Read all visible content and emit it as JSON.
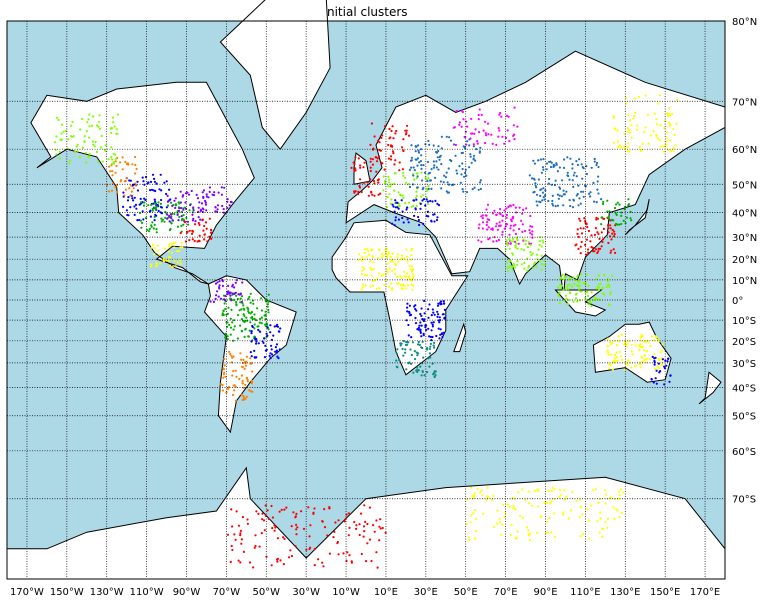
{
  "title": "Initial clusters",
  "colors": {
    "ocean": "#add8e6",
    "land": "#ffffff",
    "coast": "#000000",
    "grid": "#000000",
    "clusters": [
      "#ff0000",
      "#ff7f00",
      "#ffff00",
      "#7fff00",
      "#00b000",
      "#0d8f7f",
      "#1f6fbf",
      "#0000ff",
      "#7f00ff",
      "#ff00ff",
      "#ff0066"
    ]
  },
  "map": {
    "projection": "mercator",
    "lon_range": [
      -180,
      180
    ],
    "lat_range": [
      -80,
      80
    ],
    "parallels": [
      80,
      70,
      60,
      50,
      40,
      30,
      20,
      10,
      0,
      -10,
      -20,
      -30,
      -40,
      -50,
      -60,
      -70
    ],
    "meridians": [
      -170,
      -150,
      -130,
      -110,
      -90,
      -70,
      -50,
      -30,
      -10,
      10,
      30,
      50,
      70,
      90,
      110,
      130,
      150,
      170
    ],
    "lat_labels": [
      "80°N",
      "70°N",
      "60°N",
      "50°N",
      "40°N",
      "30°N",
      "20°N",
      "10°N",
      "0°",
      "10°S",
      "20°S",
      "30°S",
      "40°S",
      "50°S",
      "60°S",
      "70°S"
    ],
    "lon_labels": [
      "170°W",
      "150°W",
      "130°W",
      "110°W",
      "90°W",
      "70°W",
      "50°W",
      "30°W",
      "10°W",
      "10°E",
      "30°E",
      "50°E",
      "70°E",
      "90°E",
      "110°E",
      "130°E",
      "150°E",
      "170°E"
    ]
  },
  "clusters": [
    {
      "lon": -110,
      "lat": 45,
      "color": 7,
      "w": 12,
      "h": 8
    },
    {
      "lon": -100,
      "lat": 38,
      "color": 4,
      "w": 14,
      "h": 6
    },
    {
      "lon": -90,
      "lat": 42,
      "color": 8,
      "w": 10,
      "h": 6
    },
    {
      "lon": -85,
      "lat": 33,
      "color": 0,
      "w": 8,
      "h": 5
    },
    {
      "lon": -122,
      "lat": 52,
      "color": 1,
      "w": 8,
      "h": 6
    },
    {
      "lon": -140,
      "lat": 62,
      "color": 3,
      "w": 16,
      "h": 6
    },
    {
      "lon": -75,
      "lat": 45,
      "color": 8,
      "w": 8,
      "h": 5
    },
    {
      "lon": -100,
      "lat": 22,
      "color": 2,
      "w": 8,
      "h": 6
    },
    {
      "lon": -60,
      "lat": -8,
      "color": 4,
      "w": 12,
      "h": 12
    },
    {
      "lon": -50,
      "lat": -20,
      "color": 7,
      "w": 8,
      "h": 8
    },
    {
      "lon": -65,
      "lat": -35,
      "color": 1,
      "w": 8,
      "h": 10
    },
    {
      "lon": -70,
      "lat": 5,
      "color": 8,
      "w": 8,
      "h": 6
    },
    {
      "lon": 0,
      "lat": 52,
      "color": 0,
      "w": 8,
      "h": 6
    },
    {
      "lon": 20,
      "lat": 48,
      "color": 3,
      "w": 12,
      "h": 6
    },
    {
      "lon": 12,
      "lat": 60,
      "color": 0,
      "w": 10,
      "h": 6
    },
    {
      "lon": 40,
      "lat": 55,
      "color": 6,
      "w": 18,
      "h": 8
    },
    {
      "lon": 25,
      "lat": 40,
      "color": 7,
      "w": 12,
      "h": 5
    },
    {
      "lon": 10,
      "lat": 15,
      "color": 2,
      "w": 14,
      "h": 10
    },
    {
      "lon": 30,
      "lat": -10,
      "color": 7,
      "w": 10,
      "h": 10
    },
    {
      "lon": 25,
      "lat": -28,
      "color": 5,
      "w": 10,
      "h": 8
    },
    {
      "lon": 70,
      "lat": 35,
      "color": 9,
      "w": 14,
      "h": 8
    },
    {
      "lon": 80,
      "lat": 22,
      "color": 3,
      "w": 10,
      "h": 8
    },
    {
      "lon": 100,
      "lat": 50,
      "color": 6,
      "w": 18,
      "h": 8
    },
    {
      "lon": 115,
      "lat": 30,
      "color": 0,
      "w": 10,
      "h": 8
    },
    {
      "lon": 125,
      "lat": 40,
      "color": 4,
      "w": 8,
      "h": 5
    },
    {
      "lon": 110,
      "lat": 5,
      "color": 3,
      "w": 14,
      "h": 8
    },
    {
      "lon": 135,
      "lat": -25,
      "color": 2,
      "w": 14,
      "h": 8
    },
    {
      "lon": 148,
      "lat": -33,
      "color": 7,
      "w": 5,
      "h": 6
    },
    {
      "lon": 140,
      "lat": 65,
      "color": 2,
      "w": 16,
      "h": 6
    },
    {
      "lon": 60,
      "lat": 65,
      "color": 9,
      "w": 16,
      "h": 4
    },
    {
      "lon": -30,
      "lat": -75,
      "color": 0,
      "w": 40,
      "h": 4
    },
    {
      "lon": 90,
      "lat": -72,
      "color": 2,
      "w": 40,
      "h": 4
    }
  ]
}
